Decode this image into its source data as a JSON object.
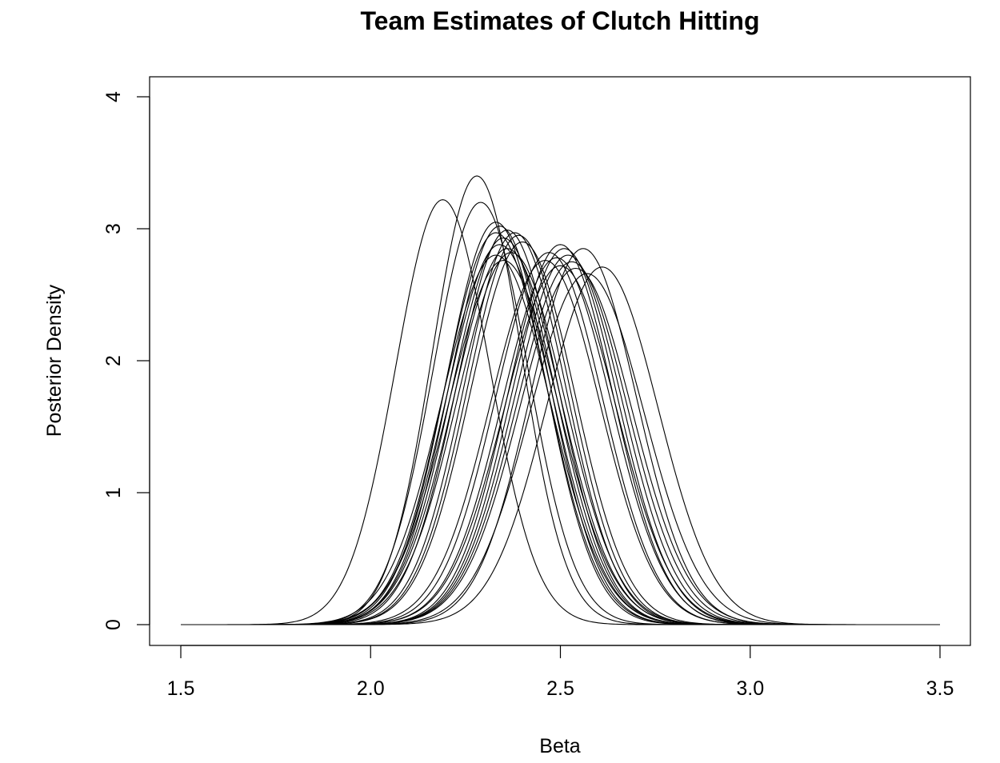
{
  "chart_data": {
    "type": "line",
    "title": "Team Estimates of Clutch Hitting",
    "xlabel": "Beta",
    "ylabel": "Posterior Density",
    "xlim": [
      1.5,
      3.5
    ],
    "ylim": [
      0,
      4
    ],
    "x_ticks": [
      1.5,
      2.0,
      2.5,
      3.0,
      3.5
    ],
    "x_tick_labels": [
      "1.5",
      "2.0",
      "2.5",
      "3.0",
      "3.5"
    ],
    "y_ticks": [
      0,
      1,
      2,
      3,
      4
    ],
    "y_tick_labels": [
      "0",
      "1",
      "2",
      "3",
      "4"
    ],
    "grid": false,
    "legend": "none",
    "curve_shape": "normal density",
    "series": [
      {
        "mean": 2.19,
        "peak": 3.22
      },
      {
        "mean": 2.28,
        "peak": 3.4
      },
      {
        "mean": 2.29,
        "peak": 3.2
      },
      {
        "mean": 2.33,
        "peak": 3.05
      },
      {
        "mean": 2.34,
        "peak": 3.02
      },
      {
        "mean": 2.33,
        "peak": 2.97
      },
      {
        "mean": 2.36,
        "peak": 2.99
      },
      {
        "mean": 2.35,
        "peak": 2.93
      },
      {
        "mean": 2.38,
        "peak": 2.97
      },
      {
        "mean": 2.39,
        "peak": 2.95
      },
      {
        "mean": 2.34,
        "peak": 2.88
      },
      {
        "mean": 2.36,
        "peak": 2.85
      },
      {
        "mean": 2.37,
        "peak": 2.82
      },
      {
        "mean": 2.4,
        "peak": 2.9
      },
      {
        "mean": 2.33,
        "peak": 2.8
      },
      {
        "mean": 2.35,
        "peak": 2.76
      },
      {
        "mean": 2.47,
        "peak": 2.82
      },
      {
        "mean": 2.49,
        "peak": 2.78
      },
      {
        "mean": 2.5,
        "peak": 2.88
      },
      {
        "mean": 2.51,
        "peak": 2.85
      },
      {
        "mean": 2.52,
        "peak": 2.8
      },
      {
        "mean": 2.5,
        "peak": 2.72
      },
      {
        "mean": 2.53,
        "peak": 2.75
      },
      {
        "mean": 2.54,
        "peak": 2.7
      },
      {
        "mean": 2.56,
        "peak": 2.85
      },
      {
        "mean": 2.57,
        "peak": 2.66
      },
      {
        "mean": 2.61,
        "peak": 2.71
      },
      {
        "mean": 2.46,
        "peak": 2.76
      }
    ]
  }
}
